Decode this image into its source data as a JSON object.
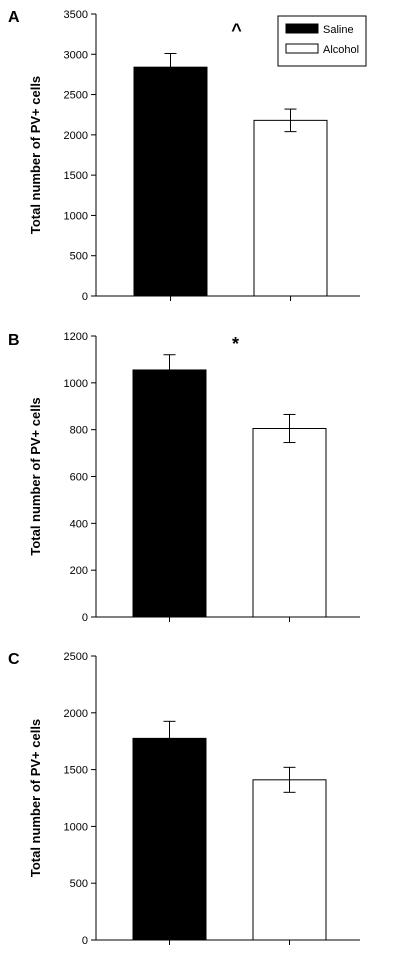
{
  "chart_data": [
    {
      "type": "bar",
      "panel_label": "A",
      "categories": [
        "Saline",
        "Alcohol"
      ],
      "values": [
        2840,
        2180
      ],
      "errors": [
        170,
        140
      ],
      "colors": [
        "#000000",
        "#ffffff"
      ],
      "ylabel": "Total number of PV+ cells",
      "ylim": [
        0,
        3500
      ],
      "yticks": [
        0,
        500,
        1000,
        1500,
        2000,
        2500,
        3000,
        3500
      ],
      "significance": "^",
      "legend": {
        "position": "top-right",
        "entries": [
          {
            "label": "Saline",
            "color": "#000000"
          },
          {
            "label": "Alcohol",
            "color": "#ffffff"
          }
        ]
      }
    },
    {
      "type": "bar",
      "panel_label": "B",
      "categories": [
        "Saline",
        "Alcohol"
      ],
      "values": [
        1055,
        805
      ],
      "errors": [
        65,
        60
      ],
      "colors": [
        "#000000",
        "#ffffff"
      ],
      "ylabel": "Total number of PV+ cells",
      "ylim": [
        0,
        1200
      ],
      "yticks": [
        0,
        200,
        400,
        600,
        800,
        1000,
        1200
      ],
      "significance": "*"
    },
    {
      "type": "bar",
      "panel_label": "C",
      "categories": [
        "Saline",
        "Alcohol"
      ],
      "values": [
        1775,
        1410
      ],
      "errors": [
        150,
        110
      ],
      "colors": [
        "#000000",
        "#ffffff"
      ],
      "ylabel": "Total number of PV+ cells",
      "ylim": [
        0,
        2500
      ],
      "yticks": [
        0,
        500,
        1000,
        1500,
        2000,
        2500
      ],
      "significance": ""
    }
  ]
}
